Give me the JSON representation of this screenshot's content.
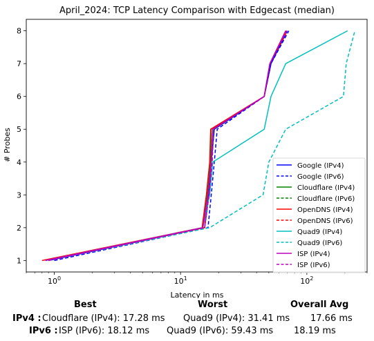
{
  "chart_data": {
    "type": "line",
    "title": "April_2024: TCP Latency Comparison with Edgecast (median)",
    "xlabel": "Latency in ms",
    "ylabel": "# Probes",
    "xscale": "log",
    "xlim": [
      0.6,
      300
    ],
    "ylim": [
      0.65,
      8.35
    ],
    "x_ticks": [
      1,
      10,
      100
    ],
    "x_tick_labels": [
      "10^0",
      "10^1",
      "10^2"
    ],
    "y_ticks": [
      1,
      2,
      3,
      4,
      5,
      6,
      7,
      8
    ],
    "grid": false,
    "legend_position": "lower-right",
    "y": [
      1,
      2,
      3,
      4,
      5,
      6,
      7,
      8
    ],
    "series": [
      {
        "name": "Google (IPv4)",
        "color": "#0000ff",
        "dash": "solid",
        "x": [
          0.9,
          15.5,
          16.8,
          17.5,
          18.5,
          46,
          52,
          70
        ]
      },
      {
        "name": "Google (IPv6)",
        "color": "#0000ff",
        "dash": "dashed",
        "x": [
          1.0,
          16.5,
          17.5,
          18.5,
          19.5,
          46,
          52,
          72
        ]
      },
      {
        "name": "Cloudflare (IPv4)",
        "color": "#008000",
        "dash": "solid",
        "x": [
          0.85,
          15.0,
          16.3,
          17.28,
          17.5,
          46,
          51,
          68
        ]
      },
      {
        "name": "Cloudflare (IPv6)",
        "color": "#008000",
        "dash": "dashed",
        "x": [
          0.9,
          15.5,
          16.8,
          17.8,
          18.3,
          46,
          51,
          69
        ]
      },
      {
        "name": "OpenDNS (IPv4)",
        "color": "#ff0000",
        "dash": "solid",
        "x": [
          0.8,
          14.8,
          16.0,
          17.0,
          17.3,
          46,
          51,
          68
        ]
      },
      {
        "name": "OpenDNS (IPv6)",
        "color": "#ff0000",
        "dash": "dashed",
        "x": [
          0.85,
          15.5,
          16.5,
          17.5,
          18.0,
          46,
          51,
          70
        ]
      },
      {
        "name": "Quad9 (IPv4)",
        "color": "#00bfbf",
        "dash": "solid",
        "x": [
          0.85,
          15.0,
          17.0,
          18.0,
          46,
          52,
          68,
          210
        ]
      },
      {
        "name": "Quad9 (IPv6)",
        "color": "#00bfbf",
        "dash": "dashed",
        "x": [
          0.9,
          17.0,
          45,
          50,
          68,
          195,
          205,
          240
        ]
      },
      {
        "name": "ISP (IPv4)",
        "color": "#bf00bf",
        "dash": "solid",
        "x": [
          0.85,
          15.0,
          16.5,
          17.5,
          18.0,
          46,
          51,
          68
        ]
      },
      {
        "name": "ISP (IPv6)",
        "color": "#bf00bf",
        "dash": "dashed",
        "x": [
          0.9,
          15.5,
          16.8,
          17.8,
          18.12,
          46,
          51,
          69
        ]
      }
    ]
  },
  "stats": {
    "headers": {
      "best": "Best",
      "worst": "Worst",
      "avg": "Overall Avg"
    },
    "rows": [
      {
        "label": "IPv4 :",
        "best": "Cloudflare (IPv4): 17.28 ms",
        "worst": "Quad9 (IPv4): 31.41 ms",
        "avg": "17.66 ms"
      },
      {
        "label": "IPv6 :",
        "best": "ISP (IPv6): 18.12 ms",
        "worst": "Quad9 (IPv6): 59.43 ms",
        "avg": "18.19 ms"
      }
    ]
  }
}
